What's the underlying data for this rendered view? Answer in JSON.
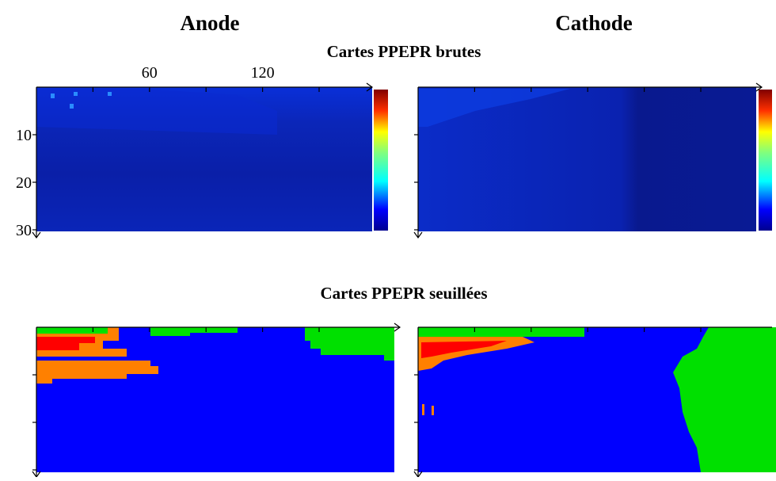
{
  "columns": [
    "Anode",
    "Cathode"
  ],
  "rows": [
    {
      "title": "Cartes PPEPR brutes"
    },
    {
      "title": "Cartes PPEPR seuillées"
    }
  ],
  "x_ticks": [
    60,
    120
  ],
  "y_ticks": [
    10,
    20,
    30
  ]
}
